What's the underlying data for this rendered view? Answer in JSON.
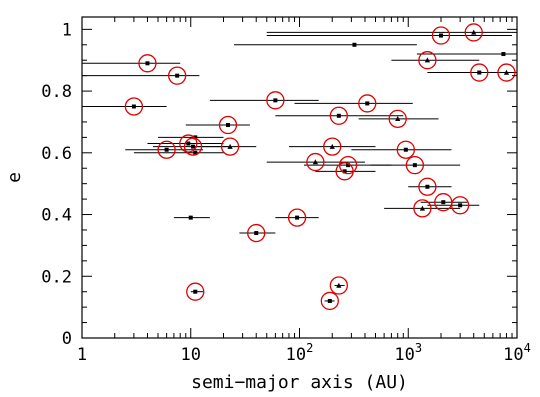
{
  "chart_data": {
    "type": "scatter",
    "title": "",
    "xlabel": "semi−major axis (AU)",
    "ylabel": "e",
    "xscale": "log",
    "xlim": [
      1,
      10000
    ],
    "ylim": [
      0,
      1.04
    ],
    "grid": false,
    "x_tick_labels": [
      {
        "value": 1,
        "base": "1",
        "exp": ""
      },
      {
        "value": 10,
        "base": "10",
        "exp": ""
      },
      {
        "value": 100,
        "base": "10",
        "exp": "2"
      },
      {
        "value": 1000,
        "base": "10",
        "exp": "3"
      },
      {
        "value": 10000,
        "base": "10",
        "exp": "4"
      }
    ],
    "y_tick_labels": [
      {
        "value": 0,
        "label": "0"
      },
      {
        "value": 0.2,
        "label": "0.2"
      },
      {
        "value": 0.4,
        "label": "0.4"
      },
      {
        "value": 0.6,
        "label": "0.6"
      },
      {
        "value": 0.8,
        "label": "0.8"
      },
      {
        "value": 1,
        "label": "1"
      }
    ],
    "points": [
      {
        "x": 4.0,
        "e": 0.89,
        "xmin": 1.0,
        "xmax": 8.0,
        "marker": "square",
        "circled": true
      },
      {
        "x": 7.5,
        "e": 0.85,
        "xmin": 1.0,
        "xmax": 12.0,
        "marker": "square",
        "circled": true
      },
      {
        "x": 3.0,
        "e": 0.75,
        "xmin": 1.0,
        "xmax": 6.0,
        "marker": "square",
        "circled": true
      },
      {
        "x": 6.0,
        "e": 0.61,
        "xmin": 2.5,
        "xmax": 13.0,
        "marker": "square",
        "circled": true
      },
      {
        "x": 9.5,
        "e": 0.63,
        "xmin": 4.0,
        "xmax": 20.0,
        "marker": "square",
        "circled": true
      },
      {
        "x": 10.5,
        "e": 0.62,
        "xmin": 4.5,
        "xmax": 22.0,
        "marker": "square",
        "circled": true
      },
      {
        "x": 11.0,
        "e": 0.65,
        "xmin": 5.0,
        "xmax": 20.0,
        "marker": "square",
        "circled": false
      },
      {
        "x": 11.0,
        "e": 0.6,
        "xmin": 3.0,
        "xmax": 20.0,
        "marker": "square",
        "circled": false
      },
      {
        "x": 22.0,
        "e": 0.69,
        "xmin": 9.0,
        "xmax": 35.0,
        "marker": "square",
        "circled": true
      },
      {
        "x": 23.0,
        "e": 0.62,
        "xmin": 10.0,
        "xmax": 40.0,
        "marker": "triangle",
        "circled": true
      },
      {
        "x": 10.0,
        "e": 0.39,
        "xmin": 7.0,
        "xmax": 15.0,
        "marker": "square",
        "circled": false
      },
      {
        "x": 11.0,
        "e": 0.15,
        "xmin": 10.0,
        "xmax": 13.0,
        "marker": "square",
        "circled": true
      },
      {
        "x": 40.0,
        "e": 0.34,
        "xmin": 28.0,
        "xmax": 60.0,
        "marker": "square",
        "circled": true
      },
      {
        "x": 60.0,
        "e": 0.77,
        "xmin": 15.0,
        "xmax": 150.0,
        "marker": "square",
        "circled": true
      },
      {
        "x": 95.0,
        "e": 0.39,
        "xmin": 60.0,
        "xmax": 150.0,
        "marker": "square",
        "circled": true
      },
      {
        "x": 320.0,
        "e": 0.95,
        "xmin": 25.0,
        "xmax": 1200.0,
        "marker": "square",
        "circled": false
      },
      {
        "x": 190.0,
        "e": 0.12,
        "xmin": 170.0,
        "xmax": 210.0,
        "marker": "square",
        "circled": true
      },
      {
        "x": 230.0,
        "e": 0.17,
        "xmin": 210.0,
        "xmax": 260.0,
        "marker": "triangle",
        "circled": true
      },
      {
        "x": 140.0,
        "e": 0.57,
        "xmin": 50.0,
        "xmax": 400.0,
        "marker": "triangle",
        "circled": true
      },
      {
        "x": 200.0,
        "e": 0.62,
        "xmin": 80.0,
        "xmax": 500.0,
        "marker": "triangle",
        "circled": true
      },
      {
        "x": 230.0,
        "e": 0.72,
        "xmin": 60.0,
        "xmax": 900.0,
        "marker": "square",
        "circled": true
      },
      {
        "x": 260.0,
        "e": 0.54,
        "xmin": 140.0,
        "xmax": 500.0,
        "marker": "square",
        "circled": true
      },
      {
        "x": 280.0,
        "e": 0.56,
        "xmin": 110.0,
        "xmax": 700.0,
        "marker": "square",
        "circled": true
      },
      {
        "x": 420.0,
        "e": 0.76,
        "xmin": 90.0,
        "xmax": 1100.0,
        "marker": "square",
        "circled": true
      },
      {
        "x": 800.0,
        "e": 0.71,
        "xmin": 350.0,
        "xmax": 1900.0,
        "marker": "triangle",
        "circled": true
      },
      {
        "x": 950.0,
        "e": 0.61,
        "xmin": 300.0,
        "xmax": 2500.0,
        "marker": "square",
        "circled": true
      },
      {
        "x": 1150.0,
        "e": 0.56,
        "xmin": 450.0,
        "xmax": 3000.0,
        "marker": "square",
        "circled": true
      },
      {
        "x": 1500.0,
        "e": 0.49,
        "xmin": 1000.0,
        "xmax": 2500.0,
        "marker": "square",
        "circled": true
      },
      {
        "x": 1350.0,
        "e": 0.42,
        "xmin": 600.0,
        "xmax": 3000.0,
        "marker": "triangle",
        "circled": true
      },
      {
        "x": 2100.0,
        "e": 0.44,
        "xmin": 1300.0,
        "xmax": 3500.0,
        "marker": "square",
        "circled": true
      },
      {
        "x": 3000.0,
        "e": 0.43,
        "xmin": 1500.0,
        "xmax": 4500.0,
        "marker": "square",
        "circled": true
      },
      {
        "x": 2000.0,
        "e": 0.98,
        "xmin": 50.0,
        "xmax": 9000.0,
        "marker": "square",
        "circled": true
      },
      {
        "x": 4000.0,
        "e": 0.99,
        "xmin": 50.0,
        "xmax": 10000.0,
        "marker": "triangle",
        "circled": true
      },
      {
        "x": 1500.0,
        "e": 0.9,
        "xmin": 700.0,
        "xmax": 4500.0,
        "marker": "triangle",
        "circled": true
      },
      {
        "x": 7500.0,
        "e": 0.92,
        "xmin": 1200.0,
        "xmax": 10000.0,
        "marker": "square",
        "circled": false
      },
      {
        "x": 4500.0,
        "e": 0.86,
        "xmin": 1500.0,
        "xmax": 10000.0,
        "marker": "square",
        "circled": true
      },
      {
        "x": 8000.0,
        "e": 0.86,
        "xmin": 3000.0,
        "xmax": 10000.0,
        "marker": "triangle",
        "circled": true
      }
    ],
    "colors": {
      "axis": "#000000",
      "point": "#000000",
      "error_bar": "#000000",
      "circle": "#e00000"
    }
  }
}
